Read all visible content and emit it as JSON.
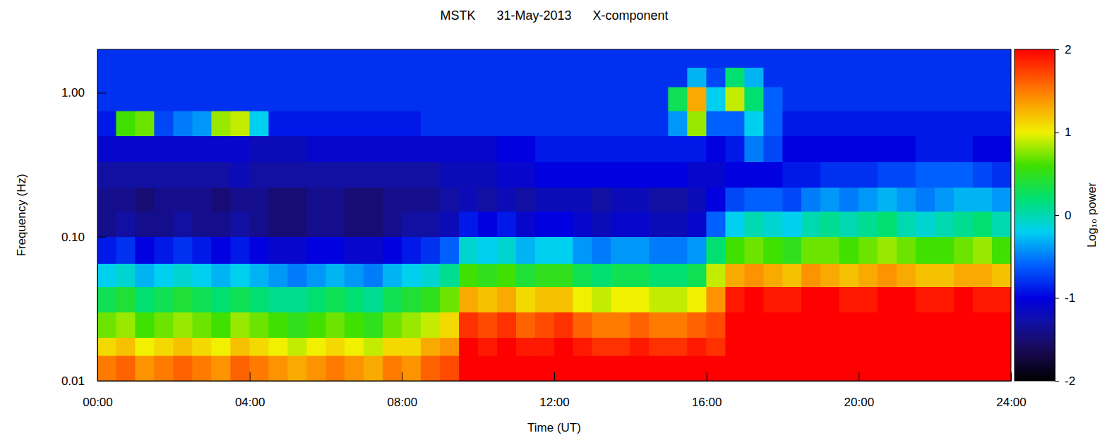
{
  "chart_data": {
    "type": "heatmap",
    "title": "MSTK      31-May-2013      X-component",
    "x_label": "Time (UT)",
    "y_label": "Frequency (Hz)",
    "log": "y",
    "xlim": [
      0,
      24
    ],
    "xticks": [
      {
        "value": 0,
        "label": "00:00"
      },
      {
        "value": 4,
        "label": "04:00"
      },
      {
        "value": 8,
        "label": "08:00"
      },
      {
        "value": 12,
        "label": "12:00"
      },
      {
        "value": 16,
        "label": "16:00"
      },
      {
        "value": 20,
        "label": "20:00"
      },
      {
        "value": 24,
        "label": "24:00"
      }
    ],
    "ylim": [
      0.01,
      2
    ],
    "yticks": [
      0.01,
      {
        "value": 0.1,
        "label": "0.10"
      },
      {
        "value": 1,
        "label": "1.00"
      }
    ],
    "x_edges": [
      0,
      0.5,
      1,
      1.5,
      2,
      2.5,
      3,
      3.5,
      4,
      4.5,
      5,
      5.5,
      6,
      6.5,
      7,
      7.5,
      8,
      8.5,
      9,
      9.5,
      10,
      10.5,
      11,
      11.5,
      12,
      12.5,
      13,
      13.5,
      14,
      14.5,
      15,
      15.5,
      16,
      16.5,
      17,
      17.5,
      18,
      18.5,
      19,
      19.5,
      20,
      20.5,
      21,
      21.5,
      22,
      22.5,
      23,
      23.5,
      24
    ],
    "y_edges": [
      0.01,
      0.015,
      0.02,
      0.03,
      0.045,
      0.065,
      0.1,
      0.15,
      0.22,
      0.33,
      0.5,
      0.75,
      1.1,
      1.5,
      2
    ],
    "cells": [
      [
        1.5,
        1.6,
        1.4,
        1.5,
        1.6,
        1.5,
        1.4,
        1.6,
        1.5,
        1.4,
        1.3,
        1.4,
        1.5,
        1.4,
        1.3,
        1.5,
        1.4,
        1.6,
        1.7,
        2,
        2,
        2,
        2,
        2,
        2,
        2,
        2,
        2,
        2,
        2,
        2,
        2,
        2,
        2,
        2,
        2,
        2,
        2,
        2,
        2,
        2,
        2,
        2,
        2,
        2,
        2,
        2,
        2
      ],
      [
        1.1,
        1.2,
        1.0,
        1.1,
        1.2,
        1.1,
        1.0,
        1.2,
        1.1,
        1.0,
        0.9,
        1.0,
        1.1,
        1.0,
        0.9,
        1.1,
        1.1,
        1.3,
        1.4,
        2,
        1.9,
        2,
        1.9,
        1.9,
        2,
        1.9,
        1.8,
        1.8,
        1.9,
        1.8,
        1.8,
        1.9,
        1.8,
        2,
        2,
        2,
        2,
        2,
        2,
        2,
        2,
        2,
        2,
        2,
        2,
        2,
        2,
        2
      ],
      [
        0.7,
        0.8,
        0.6,
        0.7,
        0.8,
        0.7,
        0.6,
        0.8,
        0.7,
        0.6,
        0.5,
        0.6,
        0.7,
        0.6,
        0.5,
        0.7,
        0.8,
        0.9,
        1.1,
        1.8,
        1.7,
        1.8,
        1.6,
        1.7,
        1.8,
        1.6,
        1.5,
        1.5,
        1.6,
        1.5,
        1.5,
        1.6,
        1.7,
        2,
        2,
        2,
        2,
        2,
        2,
        2,
        2,
        2,
        2,
        2,
        2,
        2,
        2,
        2
      ],
      [
        0.3,
        0.4,
        0.2,
        0.3,
        0.4,
        0.3,
        0.2,
        0.3,
        0.2,
        0.1,
        0.1,
        0.2,
        0.3,
        0.2,
        0.1,
        0.3,
        0.4,
        0.5,
        0.7,
        1.3,
        1.2,
        1.3,
        1.1,
        1.2,
        1.2,
        1.0,
        0.9,
        1.0,
        1.0,
        0.9,
        0.9,
        1.0,
        1.4,
        1.9,
        2,
        1.9,
        1.9,
        2,
        2,
        1.9,
        1.9,
        2,
        2,
        1.9,
        1.9,
        2,
        1.9,
        1.9
      ],
      [
        -0.2,
        -0.1,
        -0.3,
        -0.2,
        -0.1,
        -0.2,
        -0.3,
        -0.2,
        -0.3,
        -0.4,
        -0.5,
        -0.4,
        -0.3,
        -0.4,
        -0.5,
        -0.3,
        -0.2,
        -0.1,
        0.1,
        0.6,
        0.5,
        0.6,
        0.4,
        0.5,
        0.5,
        0.3,
        0.2,
        0.3,
        0.3,
        0.2,
        0.2,
        0.3,
        0.9,
        1.3,
        1.4,
        1.3,
        1.2,
        1.4,
        1.3,
        1.2,
        1.3,
        1.4,
        1.3,
        1.2,
        1.2,
        1.3,
        1.3,
        1.2
      ],
      [
        -0.9,
        -0.8,
        -1.0,
        -0.9,
        -0.8,
        -0.9,
        -1.0,
        -0.9,
        -1.0,
        -1.1,
        -1.1,
        -1.0,
        -1.0,
        -1.1,
        -1.1,
        -1.0,
        -0.9,
        -0.8,
        -0.6,
        -0.1,
        -0.2,
        -0.1,
        -0.3,
        -0.2,
        -0.2,
        -0.4,
        -0.5,
        -0.4,
        -0.4,
        -0.5,
        -0.5,
        -0.4,
        0.2,
        0.6,
        0.7,
        0.6,
        0.5,
        0.7,
        0.7,
        0.6,
        0.7,
        0.8,
        0.7,
        0.6,
        0.6,
        0.7,
        0.8,
        0.6
      ],
      [
        -1.4,
        -1.3,
        -1.4,
        -1.4,
        -1.3,
        -1.4,
        -1.4,
        -1.3,
        -1.4,
        -1.5,
        -1.5,
        -1.4,
        -1.4,
        -1.5,
        -1.5,
        -1.4,
        -1.3,
        -1.3,
        -1.2,
        -0.9,
        -1.0,
        -0.9,
        -1.1,
        -1.0,
        -1.0,
        -1.1,
        -1.2,
        -1.1,
        -1.1,
        -1.2,
        -1.2,
        -1.1,
        -0.6,
        -0.2,
        0,
        -0.1,
        -0.2,
        0,
        0.1,
        0,
        0.1,
        0.2,
        0,
        -0.1,
        0,
        0.1,
        0.2,
        0
      ],
      [
        -1.4,
        -1.4,
        -1.5,
        -1.4,
        -1.4,
        -1.4,
        -1.5,
        -1.4,
        -1.4,
        -1.5,
        -1.5,
        -1.4,
        -1.4,
        -1.5,
        -1.5,
        -1.4,
        -1.4,
        -1.4,
        -1.3,
        -1.2,
        -1.3,
        -1.2,
        -1.3,
        -1.2,
        -1.2,
        -1.2,
        -1.3,
        -1.2,
        -1.2,
        -1.3,
        -1.3,
        -1.2,
        -1.0,
        -0.7,
        -0.6,
        -0.6,
        -0.7,
        -0.5,
        -0.4,
        -0.5,
        -0.4,
        -0.3,
        -0.4,
        -0.5,
        -0.4,
        -0.3,
        -0.3,
        -0.4
      ],
      [
        -1.3,
        -1.3,
        -1.3,
        -1.3,
        -1.3,
        -1.3,
        -1.3,
        -1.2,
        -1.3,
        -1.3,
        -1.3,
        -1.3,
        -1.3,
        -1.3,
        -1.3,
        -1.3,
        -1.3,
        -1.3,
        -1.2,
        -1.2,
        -1.2,
        -1.1,
        -1.1,
        -1.0,
        -1.0,
        -1.0,
        -1.0,
        -1.0,
        -1.0,
        -1.0,
        -1.0,
        -1.1,
        -1.1,
        -1.0,
        -1.0,
        -1.0,
        -0.9,
        -0.9,
        -0.8,
        -0.8,
        -0.8,
        -0.7,
        -0.7,
        -0.6,
        -0.6,
        -0.6,
        -0.7,
        -0.8
      ],
      [
        -1.1,
        -1.1,
        -1.1,
        -1.1,
        -1.1,
        -1.1,
        -1.1,
        -1.1,
        -1.2,
        -1.2,
        -1.2,
        -1.1,
        -1.1,
        -1.1,
        -1.1,
        -1.1,
        -1.1,
        -1.1,
        -1.1,
        -1.1,
        -1.1,
        -1.0,
        -1.0,
        -0.9,
        -0.9,
        -0.9,
        -0.9,
        -0.9,
        -0.9,
        -0.9,
        -0.9,
        -0.9,
        -1.0,
        -0.9,
        -0.5,
        -0.7,
        -1.0,
        -1.0,
        -1.0,
        -1.0,
        -1.0,
        -1.0,
        -1.0,
        -0.9,
        -0.9,
        -0.9,
        -1.0,
        -1.0
      ],
      [
        -0.9,
        0.6,
        0.7,
        -0.7,
        -0.5,
        -0.4,
        0.8,
        0.9,
        -0.2,
        -0.9,
        -0.9,
        -0.9,
        -0.9,
        -0.9,
        -0.9,
        -0.9,
        -0.9,
        -0.8,
        -0.8,
        -0.8,
        -0.8,
        -0.8,
        -0.8,
        -0.8,
        -0.8,
        -0.8,
        -0.8,
        -0.8,
        -0.8,
        -0.8,
        -0.4,
        0.8,
        -0.6,
        -0.6,
        -0.2,
        -0.6,
        -0.9,
        -0.9,
        -0.9,
        -0.9,
        -0.9,
        -0.9,
        -0.9,
        -0.9,
        -0.9,
        -0.9,
        -0.9,
        -0.9
      ],
      [
        -0.8,
        -0.8,
        -0.8,
        -0.8,
        -0.8,
        -0.8,
        -0.8,
        -0.8,
        -0.8,
        -0.8,
        -0.8,
        -0.8,
        -0.8,
        -0.8,
        -0.8,
        -0.8,
        -0.8,
        -0.8,
        -0.8,
        -0.8,
        -0.8,
        -0.8,
        -0.8,
        -0.8,
        -0.8,
        -0.8,
        -0.8,
        -0.8,
        -0.8,
        -0.8,
        0.3,
        1.3,
        -0.2,
        0.9,
        0.2,
        -0.6,
        -0.8,
        -0.8,
        -0.8,
        -0.8,
        -0.8,
        -0.8,
        -0.8,
        -0.8,
        -0.8,
        -0.8,
        -0.8,
        -0.8
      ],
      [
        -0.8,
        -0.8,
        -0.8,
        -0.8,
        -0.8,
        -0.8,
        -0.8,
        -0.8,
        -0.8,
        -0.8,
        -0.8,
        -0.8,
        -0.8,
        -0.8,
        -0.8,
        -0.8,
        -0.8,
        -0.8,
        -0.8,
        -0.8,
        -0.8,
        -0.8,
        -0.8,
        -0.8,
        -0.8,
        -0.8,
        -0.8,
        -0.8,
        -0.8,
        -0.8,
        -0.8,
        -0.3,
        -0.7,
        0.2,
        -0.3,
        -0.8,
        -0.8,
        -0.8,
        -0.8,
        -0.8,
        -0.8,
        -0.8,
        -0.8,
        -0.8,
        -0.8,
        -0.8,
        -0.8,
        -0.8
      ],
      [
        -0.8,
        -0.8,
        -0.8,
        -0.8,
        -0.8,
        -0.8,
        -0.8,
        -0.8,
        -0.8,
        -0.8,
        -0.8,
        -0.8,
        -0.8,
        -0.8,
        -0.8,
        -0.8,
        -0.8,
        -0.8,
        -0.8,
        -0.8,
        -0.8,
        -0.8,
        -0.8,
        -0.8,
        -0.8,
        -0.8,
        -0.8,
        -0.8,
        -0.8,
        -0.8,
        -0.8,
        -0.8,
        -0.8,
        -0.8,
        -0.8,
        -0.8,
        -0.8,
        -0.8,
        -0.8,
        -0.8,
        -0.8,
        -0.8,
        -0.8,
        -0.8,
        -0.8,
        -0.8,
        -0.8,
        -0.8
      ]
    ],
    "colorbar": {
      "label": "Log₁₀ power",
      "range": [
        -2,
        2
      ],
      "ticks": [
        -2,
        -1,
        0,
        1,
        2
      ]
    }
  }
}
